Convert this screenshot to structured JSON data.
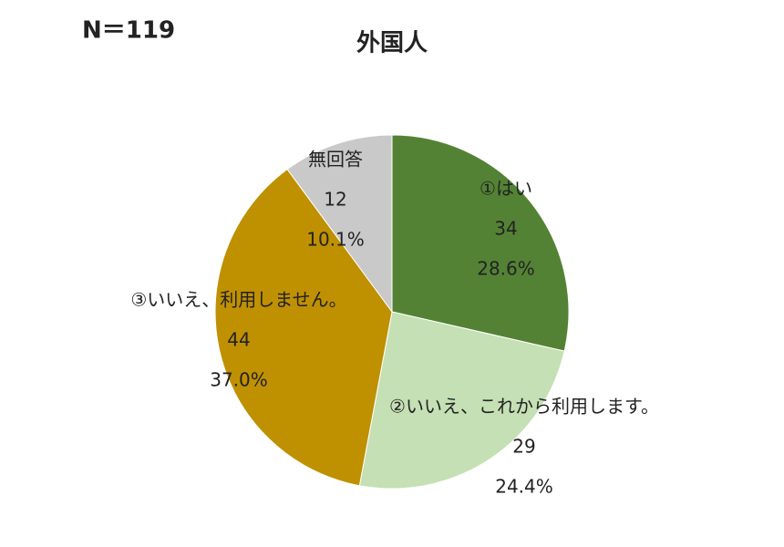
{
  "chart_data": {
    "type": "pie",
    "title": "外国人",
    "note": "N＝119",
    "categories": [
      "①はい",
      "②いいえ、これから利用します。",
      "③いいえ、利用しません。",
      "無回答"
    ],
    "values": [
      34,
      29,
      44,
      12
    ],
    "percent_labels": [
      "28.6%",
      "24.4%",
      "37.0%",
      "10.1%"
    ],
    "colors": [
      "#548235",
      "#c5e0b4",
      "#bf9000",
      "#c9c9c9"
    ]
  }
}
